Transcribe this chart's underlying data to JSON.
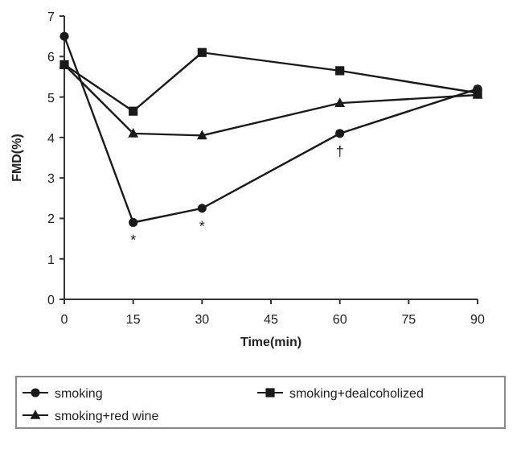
{
  "chart_data": {
    "type": "line",
    "xlabel": "Time(min)",
    "ylabel": "FMD(%)",
    "x": [
      0,
      15,
      30,
      60,
      90
    ],
    "xlim": [
      0,
      90
    ],
    "xticks": [
      0,
      15,
      30,
      45,
      60,
      75,
      90
    ],
    "ylim": [
      0,
      7
    ],
    "yticks": [
      0,
      1,
      2,
      3,
      4,
      5,
      6,
      7
    ],
    "legend": "bottom",
    "grid": false,
    "line_style": "solid",
    "series": [
      {
        "name": "smoking",
        "color": "#1a1a1a",
        "marker": "circle",
        "values": [
          6.5,
          1.9,
          2.25,
          4.1,
          5.2
        ]
      },
      {
        "name": "smoking+dealcoholized",
        "color": "#1a1a1a",
        "marker": "square",
        "values": [
          5.8,
          4.65,
          6.1,
          5.65,
          5.1
        ]
      },
      {
        "name": "smoking+red wine",
        "color": "#1a1a1a",
        "marker": "triangle",
        "values": [
          5.8,
          4.1,
          4.05,
          4.85,
          5.05
        ]
      }
    ],
    "annotations": [
      {
        "text": "*",
        "x": 15,
        "y": 1.9
      },
      {
        "text": "*",
        "x": 30,
        "y": 2.25
      },
      {
        "text": "†",
        "x": 60,
        "y": 4.1
      }
    ]
  }
}
